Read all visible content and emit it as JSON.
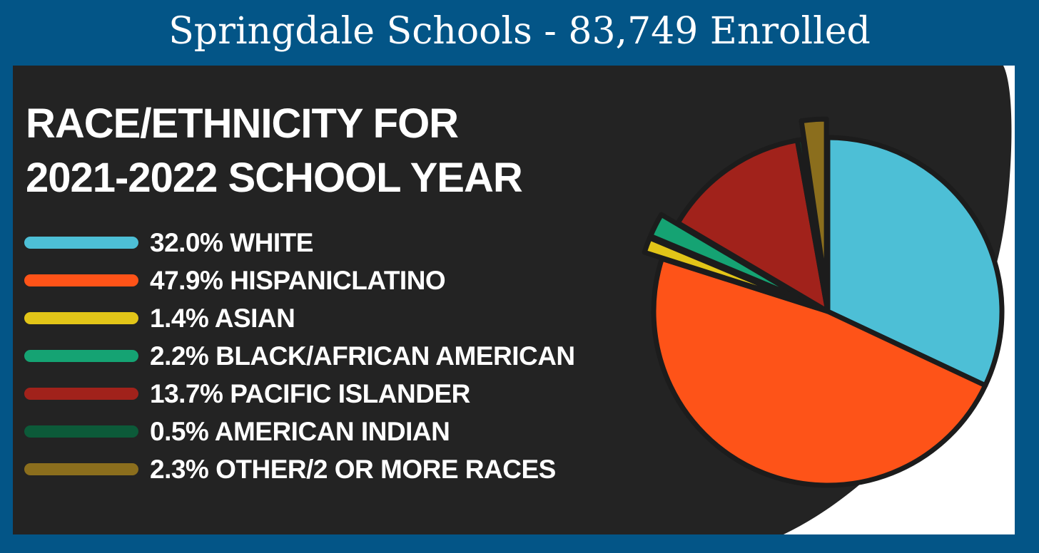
{
  "header": {
    "title": "Springdale Schools - 83,749 Enrolled"
  },
  "colors": {
    "frame": "#035587",
    "panel": "#232323",
    "white_text": "#ffffff"
  },
  "chart_data": {
    "type": "pie",
    "title_lines": [
      "RACE/ETHNICITY FOR",
      "2021-2022 SCHOOL YEAR"
    ],
    "legend_position": "left",
    "slices": [
      {
        "label": "32.0% WHITE",
        "value": 32.0,
        "color": "#4dbfd6",
        "exploded": false
      },
      {
        "label": "47.9% HISPANICLATINO",
        "value": 47.9,
        "color": "#fe5318",
        "exploded": false
      },
      {
        "label": "1.4% ASIAN",
        "value": 1.4,
        "color": "#e2c518",
        "exploded": true
      },
      {
        "label": "2.2% BLACK/AFRICAN AMERICAN",
        "value": 2.2,
        "color": "#15a373",
        "exploded": true
      },
      {
        "label": "13.7% PACIFIC ISLANDER",
        "value": 13.7,
        "color": "#a1221b",
        "exploded": false
      },
      {
        "label": "0.5% AMERICAN INDIAN",
        "value": 0.5,
        "color": "#0c5a39",
        "exploded": false
      },
      {
        "label": "2.3% OTHER/2 OR MORE RACES",
        "value": 2.3,
        "color": "#8b6e1d",
        "exploded": true
      }
    ]
  }
}
